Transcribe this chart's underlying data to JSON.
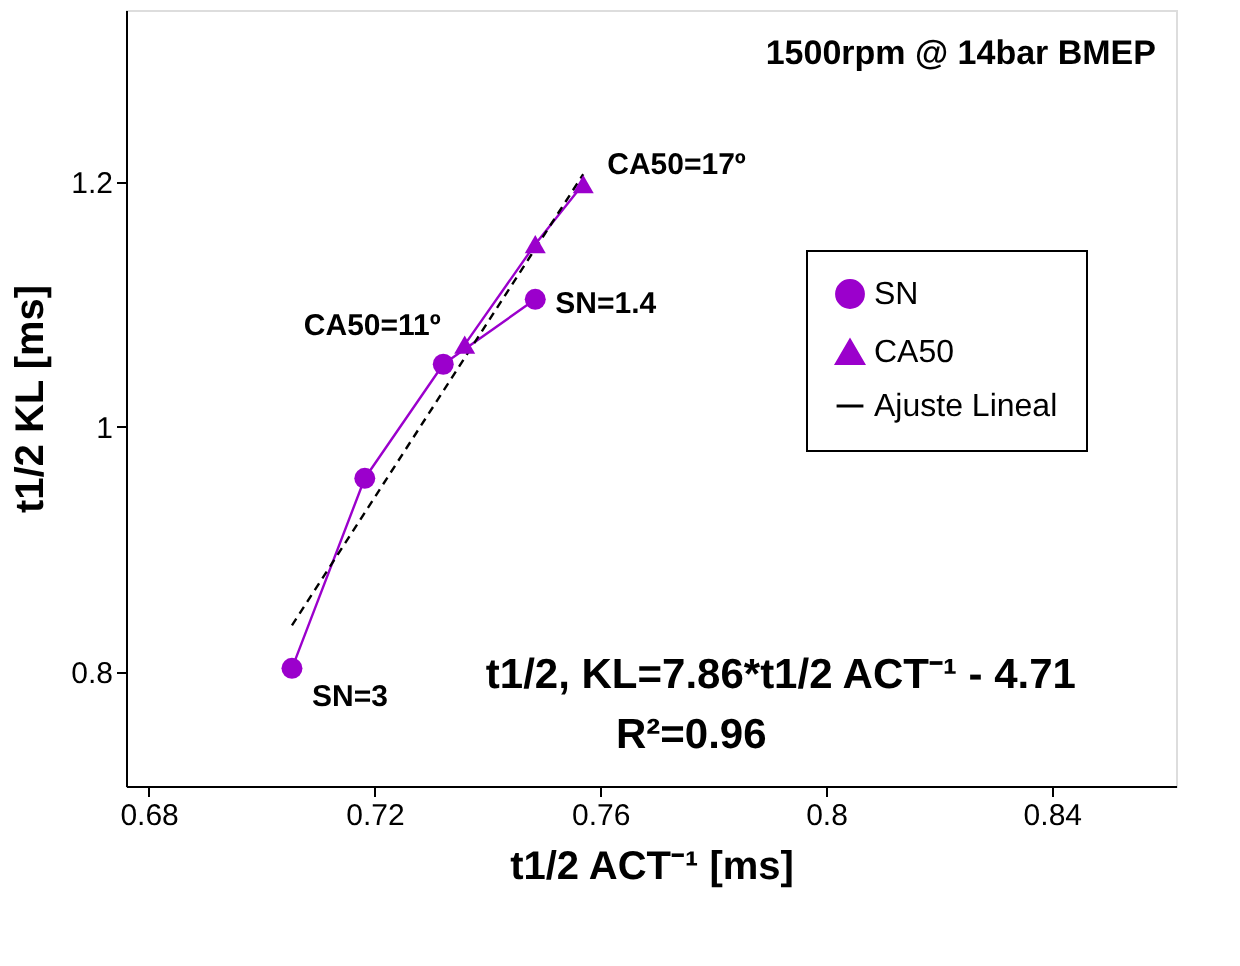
{
  "chart_data": {
    "type": "line",
    "xlabel": "t1/2 ACT⁻¹ [ms]",
    "ylabel": "t1/2 KL [ms]",
    "xlim": [
      0.676,
      0.862
    ],
    "ylim": [
      0.707,
      1.34
    ],
    "xticks": [
      0.68,
      0.72,
      0.76,
      0.8,
      0.84
    ],
    "yticks": [
      0.8,
      1,
      1.2
    ],
    "grid": false,
    "legend": "right",
    "series": [
      {
        "name": "SN",
        "color": "#9b00cc",
        "marker": "circle",
        "line_style": "solid",
        "x": [
          0.7054,
          0.7183,
          0.7322,
          0.7485
        ],
        "values": [
          0.803,
          0.958,
          1.051,
          1.104
        ]
      },
      {
        "name": "CA50",
        "color": "#9b00cc",
        "marker": "triangle",
        "line_style": "solid",
        "x": [
          0.736,
          0.7485,
          0.757
        ],
        "values": [
          1.067,
          1.149,
          1.198
        ]
      },
      {
        "name": "Ajuste Lineal",
        "color": "#000000",
        "marker": "none",
        "line_style": "dashed",
        "x": [
          0.7054,
          0.757
        ],
        "values": [
          0.838,
          1.206
        ]
      }
    ],
    "annotations": [
      "1500rpm @ 14bar BMEP",
      "t1/2, KL=7.86*t1/2 ACT⁻¹ - 4.71",
      "R²=0.96",
      {
        "text": "SN=3",
        "x": 0.7054,
        "y": 0.803
      },
      {
        "text": "SN=1.4",
        "x": 0.7485,
        "y": 1.104
      },
      {
        "text": "CA50=11º",
        "x": 0.736,
        "y": 1.067
      },
      {
        "text": "CA50=17º",
        "x": 0.757,
        "y": 1.198
      }
    ]
  }
}
